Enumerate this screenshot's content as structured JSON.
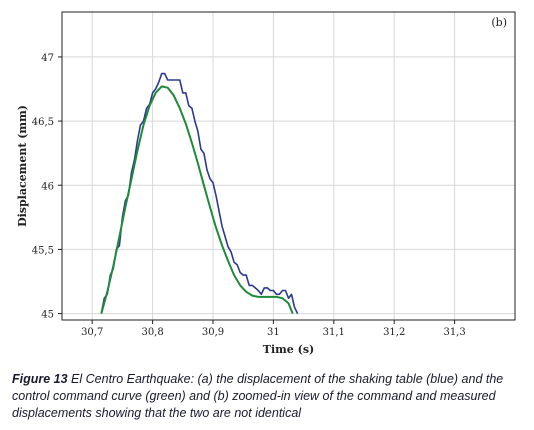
{
  "chart_data": {
    "type": "line",
    "panel_label": "(b)",
    "xlabel": "Time (s)",
    "ylabel": "Displacement (mm)",
    "xlim": [
      30.65,
      31.4
    ],
    "ylim": [
      44.95,
      47.35
    ],
    "x_ticks": [
      30.7,
      30.8,
      30.9,
      31.0,
      31.1,
      31.2,
      31.3
    ],
    "x_tick_labels": [
      "30,7",
      "30,8",
      "30,9",
      "31",
      "31,1",
      "31,2",
      "31,3"
    ],
    "y_ticks": [
      45,
      45.5,
      46,
      46.5,
      47
    ],
    "y_tick_labels": [
      "45",
      "45,5",
      "46",
      "46,5",
      "47"
    ],
    "grid": true,
    "series": [
      {
        "color": "#2b3a8f",
        "points": [
          [
            30.715,
            45.0
          ],
          [
            30.72,
            45.12
          ],
          [
            30.725,
            45.15
          ],
          [
            30.73,
            45.3
          ],
          [
            30.735,
            45.35
          ],
          [
            30.74,
            45.5
          ],
          [
            30.745,
            45.53
          ],
          [
            30.75,
            45.75
          ],
          [
            30.755,
            45.88
          ],
          [
            30.76,
            45.92
          ],
          [
            30.765,
            46.1
          ],
          [
            30.77,
            46.2
          ],
          [
            30.775,
            46.35
          ],
          [
            30.78,
            46.47
          ],
          [
            30.785,
            46.5
          ],
          [
            30.79,
            46.6
          ],
          [
            30.795,
            46.63
          ],
          [
            30.8,
            46.72
          ],
          [
            30.805,
            46.75
          ],
          [
            30.81,
            46.8
          ],
          [
            30.815,
            46.87
          ],
          [
            30.82,
            46.87
          ],
          [
            30.825,
            46.82
          ],
          [
            30.83,
            46.82
          ],
          [
            30.835,
            46.82
          ],
          [
            30.84,
            46.82
          ],
          [
            30.845,
            46.82
          ],
          [
            30.85,
            46.72
          ],
          [
            30.855,
            46.72
          ],
          [
            30.86,
            46.62
          ],
          [
            30.865,
            46.6
          ],
          [
            30.87,
            46.5
          ],
          [
            30.875,
            46.42
          ],
          [
            30.88,
            46.28
          ],
          [
            30.885,
            46.25
          ],
          [
            30.89,
            46.12
          ],
          [
            30.895,
            46.05
          ],
          [
            30.9,
            46.02
          ],
          [
            30.905,
            45.92
          ],
          [
            30.91,
            45.8
          ],
          [
            30.915,
            45.68
          ],
          [
            30.92,
            45.6
          ],
          [
            30.925,
            45.52
          ],
          [
            30.93,
            45.48
          ],
          [
            30.935,
            45.4
          ],
          [
            30.94,
            45.38
          ],
          [
            30.945,
            45.32
          ],
          [
            30.95,
            45.3
          ],
          [
            30.955,
            45.3
          ],
          [
            30.96,
            45.22
          ],
          [
            30.965,
            45.22
          ],
          [
            30.97,
            45.2
          ],
          [
            30.975,
            45.18
          ],
          [
            30.98,
            45.15
          ],
          [
            30.985,
            45.2
          ],
          [
            30.99,
            45.2
          ],
          [
            30.995,
            45.18
          ],
          [
            31.0,
            45.18
          ],
          [
            31.005,
            45.15
          ],
          [
            31.01,
            45.15
          ],
          [
            31.015,
            45.18
          ],
          [
            31.02,
            45.18
          ],
          [
            31.025,
            45.12
          ],
          [
            31.03,
            45.15
          ],
          [
            31.035,
            45.05
          ],
          [
            31.04,
            45.0
          ]
        ]
      },
      {
        "color": "#1f8a3a",
        "points": [
          [
            30.715,
            45.0
          ],
          [
            30.725,
            45.17
          ],
          [
            30.735,
            45.37
          ],
          [
            30.745,
            45.6
          ],
          [
            30.755,
            45.83
          ],
          [
            30.765,
            46.05
          ],
          [
            30.775,
            46.27
          ],
          [
            30.785,
            46.47
          ],
          [
            30.795,
            46.62
          ],
          [
            30.805,
            46.72
          ],
          [
            30.815,
            46.77
          ],
          [
            30.825,
            46.76
          ],
          [
            30.835,
            46.7
          ],
          [
            30.845,
            46.6
          ],
          [
            30.855,
            46.48
          ],
          [
            30.865,
            46.33
          ],
          [
            30.875,
            46.17
          ],
          [
            30.885,
            46.0
          ],
          [
            30.895,
            45.83
          ],
          [
            30.905,
            45.67
          ],
          [
            30.915,
            45.53
          ],
          [
            30.925,
            45.41
          ],
          [
            30.935,
            45.3
          ],
          [
            30.945,
            45.22
          ],
          [
            30.955,
            45.17
          ],
          [
            30.965,
            45.14
          ],
          [
            30.975,
            45.13
          ],
          [
            30.985,
            45.13
          ],
          [
            30.995,
            45.13
          ],
          [
            31.005,
            45.13
          ],
          [
            31.015,
            45.12
          ],
          [
            31.025,
            45.08
          ],
          [
            31.032,
            45.0
          ]
        ]
      }
    ]
  },
  "caption": {
    "figure_number": "Figure 13",
    "text": " El Centro Earthquake: (a) the displacement of the shaking table (blue) and the control command curve (green) and (b) zoomed-in view of the command and measured displacements showing that the two are not identical"
  }
}
